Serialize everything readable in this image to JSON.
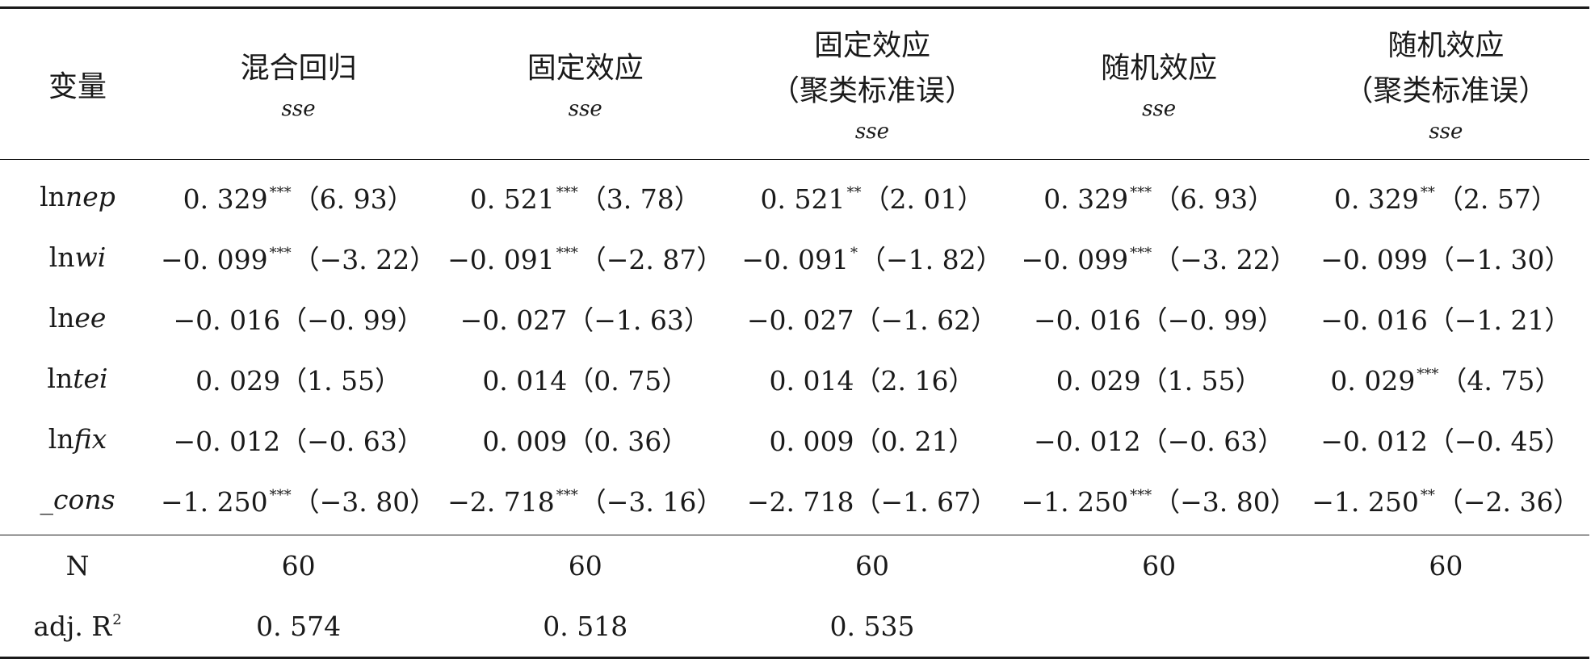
{
  "header": {
    "variable_label": "变量",
    "columns": [
      {
        "title": "混合回归",
        "subtitle": "",
        "se_label": "sse"
      },
      {
        "title": "固定效应",
        "subtitle": "",
        "se_label": "sse"
      },
      {
        "title": "固定效应",
        "subtitle": "（聚类标准误）",
        "se_label": "sse"
      },
      {
        "title": "随机效应",
        "subtitle": "",
        "se_label": "sse"
      },
      {
        "title": "随机效应",
        "subtitle": "（聚类标准误）",
        "se_label": "sse"
      }
    ]
  },
  "rows": [
    {
      "prefix": "ln",
      "italic": "nep",
      "cells": [
        {
          "coef": "0. 329",
          "stars": "***",
          "se": "（6. 93）"
        },
        {
          "coef": "0. 521",
          "stars": "***",
          "se": "（3. 78）"
        },
        {
          "coef": "0. 521",
          "stars": "**",
          "se": "（2. 01）"
        },
        {
          "coef": "0. 329",
          "stars": "***",
          "se": "（6. 93）"
        },
        {
          "coef": "0. 329",
          "stars": "**",
          "se": "（2. 57）"
        }
      ]
    },
    {
      "prefix": "ln",
      "italic": "wi",
      "cells": [
        {
          "coef": "−0. 099",
          "stars": "***",
          "se": "（−3. 22）"
        },
        {
          "coef": "−0. 091",
          "stars": "***",
          "se": "（−2. 87）"
        },
        {
          "coef": "−0. 091",
          "stars": "*",
          "se": "（−1. 82）"
        },
        {
          "coef": "−0. 099",
          "stars": "***",
          "se": "（−3. 22）"
        },
        {
          "coef": "−0. 099",
          "stars": "",
          "se": "（−1. 30）"
        }
      ]
    },
    {
      "prefix": "ln",
      "italic": "ee",
      "cells": [
        {
          "coef": "−0. 016",
          "stars": "",
          "se": "（−0. 99）"
        },
        {
          "coef": "−0. 027",
          "stars": "",
          "se": "（−1. 63）"
        },
        {
          "coef": "−0. 027",
          "stars": "",
          "se": "（−1. 62）"
        },
        {
          "coef": "−0. 016",
          "stars": "",
          "se": "（−0. 99）"
        },
        {
          "coef": "−0. 016",
          "stars": "",
          "se": "（−1. 21）"
        }
      ]
    },
    {
      "prefix": "ln",
      "italic": "tei",
      "cells": [
        {
          "coef": "0. 029",
          "stars": "",
          "se": "（1. 55）"
        },
        {
          "coef": "0. 014",
          "stars": "",
          "se": "（0. 75）"
        },
        {
          "coef": "0. 014",
          "stars": "",
          "se": "（2. 16）"
        },
        {
          "coef": "0. 029",
          "stars": "",
          "se": "（1. 55）"
        },
        {
          "coef": "0. 029",
          "stars": "***",
          "se": "（4. 75）"
        }
      ]
    },
    {
      "prefix": "ln",
      "italic": "fix",
      "cells": [
        {
          "coef": "−0. 012",
          "stars": "",
          "se": "（−0. 63）"
        },
        {
          "coef": "0. 009",
          "stars": "",
          "se": "（0. 36）"
        },
        {
          "coef": "0. 009",
          "stars": "",
          "se": "（0. 21）"
        },
        {
          "coef": "−0. 012",
          "stars": "",
          "se": "（−0. 63）"
        },
        {
          "coef": "−0. 012",
          "stars": "",
          "se": "（−0. 45）"
        }
      ]
    },
    {
      "prefix": "",
      "italic": "_cons",
      "cells": [
        {
          "coef": "−1. 250",
          "stars": "***",
          "se": "（−3. 80）"
        },
        {
          "coef": "−2. 718",
          "stars": "***",
          "se": "（−3. 16）"
        },
        {
          "coef": "−2. 718",
          "stars": "",
          "se": "（−1. 67）"
        },
        {
          "coef": "−1. 250",
          "stars": "***",
          "se": "（−3. 80）"
        },
        {
          "coef": "−1. 250",
          "stars": "**",
          "se": "（−2. 36）"
        }
      ]
    }
  ],
  "footer": {
    "n_label": "N",
    "n_values": [
      "60",
      "60",
      "60",
      "60",
      "60"
    ],
    "r2_label": "adj. R",
    "r2_exponent": "2",
    "r2_values": [
      "0. 574",
      "0. 518",
      "0. 535",
      "",
      ""
    ]
  }
}
